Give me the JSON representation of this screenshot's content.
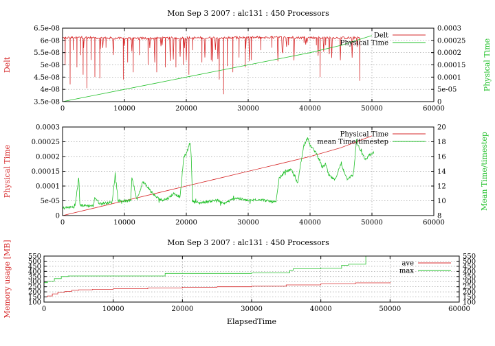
{
  "figure_title": "Mon Sep 3 2007 : alc131 : 450 Processors",
  "colors": {
    "red": "#d62728",
    "green": "#22c02a",
    "grid": "#9a9a9a",
    "text": "#000000"
  },
  "chart_data": [
    {
      "type": "line",
      "title": "Mon Sep 3 2007 : alc131 : 450 Processors",
      "xlabel": "",
      "ylabel": "Delt",
      "y2label": "Physical Time",
      "xlim": [
        0,
        60000
      ],
      "ylim": [
        3.5e-08,
        6.5e-08
      ],
      "y2lim": [
        0,
        0.0003
      ],
      "xticks": [
        "0",
        "10000",
        "20000",
        "30000",
        "40000",
        "50000",
        "60000"
      ],
      "yticks": [
        "3.5e-08",
        "4e-08",
        "4.5e-08",
        "5e-08",
        "5.5e-08",
        "6e-08",
        "6.5e-08"
      ],
      "y2ticks": [
        "0",
        "5e-05",
        "0.0001",
        "0.00015",
        "0.0002",
        "0.00025",
        "0.0003"
      ],
      "grid": true,
      "legend_position": "top-right",
      "series": [
        {
          "name": "Delt",
          "axis": "y",
          "color": "#d62728",
          "style": "spiky",
          "baseline": [
            [
              0,
              6.1e-08
            ],
            [
              3000,
              6.12e-08
            ],
            [
              10000,
              6.08e-08
            ],
            [
              20000,
              6.1e-08
            ],
            [
              35000,
              6.12e-08
            ],
            [
              48000,
              6.1e-08
            ]
          ],
          "dips": [
            [
              400,
              5e-08
            ],
            [
              1200,
              4.2e-08
            ],
            [
              1700,
              5.6e-08
            ],
            [
              2300,
              4.9e-08
            ],
            [
              2900,
              5.4e-08
            ],
            [
              3300,
              4.6e-08
            ],
            [
              3900,
              4.05e-08
            ],
            [
              4600,
              5.2e-08
            ],
            [
              5200,
              4.5e-08
            ],
            [
              6000,
              4.45e-08
            ],
            [
              7000,
              5.7e-08
            ],
            [
              9800,
              4.4e-08
            ],
            [
              10500,
              5.1e-08
            ],
            [
              11400,
              4.7e-08
            ],
            [
              12400,
              5.4e-08
            ],
            [
              13800,
              5e-08
            ],
            [
              15200,
              4.7e-08
            ],
            [
              16600,
              4.9e-08
            ],
            [
              18300,
              4.9e-08
            ],
            [
              19500,
              5e-08
            ],
            [
              20400,
              4.6e-08
            ],
            [
              21000,
              5.6e-08
            ],
            [
              22500,
              5.1e-08
            ],
            [
              24000,
              5.2e-08
            ],
            [
              25300,
              4.4e-08
            ],
            [
              26000,
              3.8e-08
            ],
            [
              26600,
              4.95e-08
            ],
            [
              27500,
              4.7e-08
            ],
            [
              28500,
              5.3e-08
            ],
            [
              29500,
              4.9e-08
            ],
            [
              30500,
              5.2e-08
            ],
            [
              32000,
              5.6e-08
            ],
            [
              33800,
              5.7e-08
            ],
            [
              36500,
              5.8e-08
            ],
            [
              39000,
              5.9e-08
            ],
            [
              41000,
              5.8e-08
            ],
            [
              41600,
              4.5e-08
            ],
            [
              42500,
              5.8e-08
            ],
            [
              48000,
              4.35e-08
            ]
          ]
        },
        {
          "name": "Physical Time",
          "axis": "y2",
          "color": "#22c02a",
          "x": [
            0,
            5000,
            10000,
            15000,
            20000,
            25000,
            30000,
            35000,
            40000,
            45000,
            50000
          ],
          "y": [
            0,
            2.5e-05,
            5e-05,
            7.5e-05,
            0.0001,
            0.000125,
            0.00015,
            0.000175,
            0.0002,
            0.00023,
            0.00027
          ]
        }
      ]
    },
    {
      "type": "line",
      "title": "",
      "xlabel": "",
      "ylabel": "Physical Time",
      "y2label": "Mean Time/timestep",
      "xlim": [
        0,
        60000
      ],
      "ylim": [
        0,
        0.0003
      ],
      "y2lim": [
        8,
        20
      ],
      "xticks": [
        "0",
        "10000",
        "20000",
        "30000",
        "40000",
        "50000",
        "60000"
      ],
      "yticks": [
        "0",
        "5e-05",
        "0.0001",
        "0.00015",
        "0.0002",
        "0.00025",
        "0.0003"
      ],
      "y2ticks": [
        "8",
        "10",
        "12",
        "14",
        "16",
        "18",
        "20"
      ],
      "grid": true,
      "legend_position": "top-right",
      "series": [
        {
          "name": "Physical Time",
          "axis": "y",
          "color": "#d62728",
          "x": [
            0,
            5000,
            10000,
            15000,
            20000,
            25000,
            30000,
            35000,
            40000,
            45000,
            50000
          ],
          "y": [
            0,
            2.5e-05,
            5e-05,
            7.5e-05,
            0.0001,
            0.000125,
            0.00015,
            0.000175,
            0.0002,
            0.00023,
            0.00027
          ]
        },
        {
          "name": "mean Time/timestep",
          "axis": "y2",
          "color": "#22c02a",
          "style": "noisy",
          "x": [
            0,
            2000,
            2600,
            2800,
            3000,
            5000,
            5200,
            6000,
            8000,
            8500,
            9000,
            11000,
            11200,
            12000,
            13000,
            15000,
            16000,
            17000,
            18000,
            19000,
            19600,
            20000,
            20600,
            20800,
            21000,
            22000,
            25000,
            26000,
            28000,
            30000,
            32000,
            33000,
            34500,
            35000,
            36000,
            37000,
            38000,
            38500,
            39000,
            39600,
            40000,
            41000,
            42000,
            42500,
            43000,
            44000,
            45000,
            46000,
            47000,
            47500,
            48000,
            49000,
            49500,
            50300
          ],
          "y": [
            9.0,
            9.2,
            13.0,
            9.5,
            9.4,
            9.3,
            10.5,
            9.6,
            9.8,
            13.5,
            10.0,
            10.0,
            13.2,
            10.2,
            12.6,
            10.6,
            10.1,
            10.3,
            11.0,
            10.5,
            16.0,
            16.3,
            18.0,
            16.0,
            10.0,
            9.7,
            10.1,
            9.6,
            10.4,
            10.0,
            10.2,
            10.0,
            9.8,
            13.0,
            14.0,
            14.2,
            12.3,
            15.2,
            17.5,
            18.6,
            17.5,
            16.5,
            14.5,
            15.0,
            13.5,
            12.8,
            15.0,
            13.0,
            13.5,
            18.2,
            17.0,
            15.5,
            16.2,
            16.4
          ]
        }
      ]
    },
    {
      "type": "line",
      "title": "Mon Sep 3 2007 : alc131 : 450 Processors",
      "xlabel": "ElapsedTime",
      "ylabel": "Memory usage [MB]",
      "y2label": "",
      "xlim": [
        0,
        60000
      ],
      "ylim": [
        100,
        550
      ],
      "y2lim": [
        100,
        550
      ],
      "xticks": [
        "0",
        "10000",
        "20000",
        "30000",
        "40000",
        "50000",
        "60000"
      ],
      "yticks": [
        "100",
        "150",
        "200",
        "250",
        "300",
        "350",
        "400",
        "450",
        "500",
        "550"
      ],
      "y2ticks": [
        "100",
        "150",
        "200",
        "250",
        "300",
        "350",
        "400",
        "450",
        "500",
        "550"
      ],
      "grid": true,
      "legend_position": "top-right",
      "series": [
        {
          "name": "ave",
          "axis": "y",
          "color": "#d62728",
          "style": "step",
          "x": [
            0,
            500,
            1200,
            2000,
            3000,
            4000,
            5000,
            7000,
            10000,
            15000,
            20000,
            25000,
            30000,
            35000,
            40000,
            45000,
            50000
          ],
          "y": [
            150,
            160,
            180,
            195,
            205,
            215,
            220,
            225,
            230,
            238,
            245,
            250,
            255,
            268,
            278,
            288,
            295
          ]
        },
        {
          "name": "max",
          "axis": "y",
          "color": "#22c02a",
          "style": "step",
          "x": [
            0,
            500,
            1500,
            2500,
            3500,
            5000,
            17500,
            25000,
            30000,
            35500,
            36000,
            40000,
            43000,
            44000,
            46500,
            50000
          ],
          "y": [
            290,
            305,
            330,
            350,
            355,
            355,
            380,
            380,
            385,
            410,
            425,
            430,
            460,
            470,
            550,
            550
          ]
        }
      ]
    }
  ]
}
